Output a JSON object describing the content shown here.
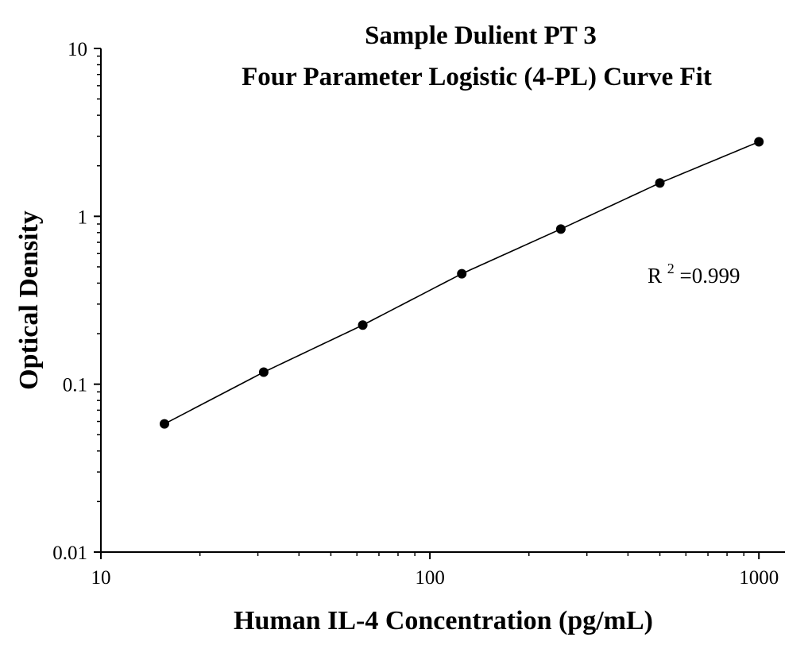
{
  "chart_data": {
    "type": "scatter",
    "title": [
      "Sample Dulient PT 3",
      "Four Parameter Logistic (4-PL) Curve Fit"
    ],
    "xlabel": "Human IL-4 Concentration (pg/mL)",
    "ylabel": "Optical Density",
    "xscale": "log",
    "yscale": "log",
    "xlim": [
      10,
      1200
    ],
    "ylim": [
      0.01,
      10
    ],
    "xticks": [
      10,
      100,
      1000
    ],
    "xtick_labels": [
      "10",
      "100",
      "1000"
    ],
    "yticks": [
      0.01,
      0.1,
      1,
      10
    ],
    "ytick_labels": [
      "0.01",
      "0.1",
      "1",
      "10"
    ],
    "grid": false,
    "series": [
      {
        "x": [
          15.6,
          31.25,
          62.5,
          125,
          250,
          500,
          1000
        ],
        "y": [
          0.058,
          0.118,
          0.225,
          0.455,
          0.84,
          1.58,
          2.78
        ],
        "marker": "circle",
        "color": "#000000",
        "fit_curve": "4-PL"
      }
    ],
    "annotation": {
      "base": "R",
      "sup": "2",
      "value": "=0.999"
    }
  }
}
